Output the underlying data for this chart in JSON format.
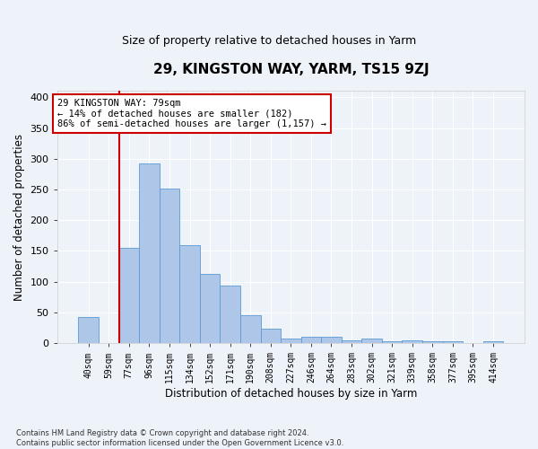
{
  "title": "29, KINGSTON WAY, YARM, TS15 9ZJ",
  "subtitle": "Size of property relative to detached houses in Yarm",
  "xlabel": "Distribution of detached houses by size in Yarm",
  "ylabel": "Number of detached properties",
  "bar_labels": [
    "40sqm",
    "59sqm",
    "77sqm",
    "96sqm",
    "115sqm",
    "134sqm",
    "152sqm",
    "171sqm",
    "190sqm",
    "208sqm",
    "227sqm",
    "246sqm",
    "264sqm",
    "283sqm",
    "302sqm",
    "321sqm",
    "339sqm",
    "358sqm",
    "377sqm",
    "395sqm",
    "414sqm"
  ],
  "bar_values": [
    42,
    0,
    155,
    292,
    251,
    160,
    113,
    93,
    46,
    24,
    8,
    10,
    10,
    5,
    8,
    3,
    4,
    3,
    3,
    0,
    3
  ],
  "bar_color": "#aec6e8",
  "bar_edge_color": "#5b9bd5",
  "bg_color": "#eef2f9",
  "grid_color": "#ffffff",
  "vline_index": 2,
  "vline_color": "#cc0000",
  "annotation_text": "29 KINGSTON WAY: 79sqm\n← 14% of detached houses are smaller (182)\n86% of semi-detached houses are larger (1,157) →",
  "annotation_box_color": "#ffffff",
  "annotation_box_edge": "#cc0000",
  "footer": "Contains HM Land Registry data © Crown copyright and database right 2024.\nContains public sector information licensed under the Open Government Licence v3.0.",
  "ylim": [
    0,
    410
  ],
  "yticks": [
    0,
    50,
    100,
    150,
    200,
    250,
    300,
    350,
    400
  ],
  "figsize": [
    6.0,
    5.0
  ],
  "dpi": 100
}
